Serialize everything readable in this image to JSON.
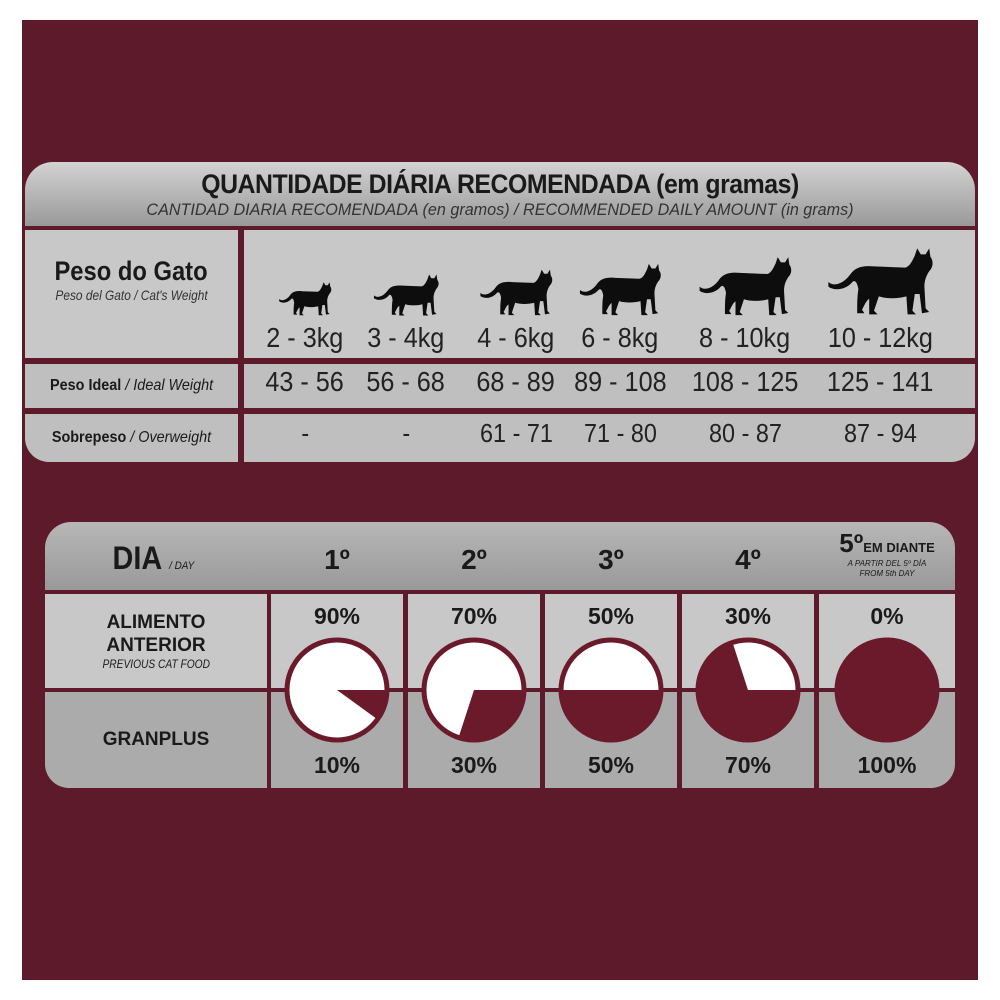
{
  "colors": {
    "background": "#5d1a2b",
    "panel": "#c9c8c8",
    "header": "#a9a8a8",
    "pie_new": "#6b1a2c",
    "pie_old": "#ffffff"
  },
  "table1": {
    "title": "QUANTIDADE DIÁRIA RECOMENDADA (em gramas)",
    "subtitle": "CANTIDAD DIARIA RECOMENDADA (en gramos) / RECOMMENDED DAILY AMOUNT (in grams)",
    "weight_label": "Peso do Gato",
    "weight_sublabel": "Peso del Gato / Cat's Weight",
    "weights": [
      "2 - 3kg",
      "3 - 4kg",
      "4 - 6kg",
      "6 - 8kg",
      "8 - 10kg",
      "10 - 12kg"
    ],
    "ideal_label": "Peso Ideal",
    "ideal_label_en": "/ Ideal Weight",
    "ideal": [
      "43 - 56",
      "56 - 68",
      "68 - 89",
      "89 - 108",
      "108 - 125",
      "125 - 141"
    ],
    "over_label": "Sobrepeso",
    "over_label_en": "/ Overweight",
    "over": [
      "-",
      "-",
      "61 - 71",
      "71 - 80",
      "80 - 87",
      "87 - 94"
    ],
    "cat_icon": "cat-silhouette-icon"
  },
  "table2": {
    "day_label": "DIA",
    "day_label_en": "/ DAY",
    "days": [
      "1º",
      "2º",
      "3º",
      "4º",
      "5º"
    ],
    "day5_suffix": "EM DIANTE",
    "day5_es": "A PARTIR DEL 5º DÍA",
    "day5_en": "FROM 5th DAY",
    "prev_label_1": "ALIMENTO",
    "prev_label_2": "ANTERIOR",
    "prev_label_en": "PREVIOUS CAT FOOD",
    "new_label": "GRANPLUS",
    "previous_pct": [
      "90%",
      "70%",
      "50%",
      "30%",
      "0%"
    ],
    "granplus_pct": [
      "10%",
      "30%",
      "50%",
      "70%",
      "100%"
    ],
    "granplus_fraction": [
      0.1,
      0.3,
      0.5,
      0.7,
      1.0
    ]
  }
}
